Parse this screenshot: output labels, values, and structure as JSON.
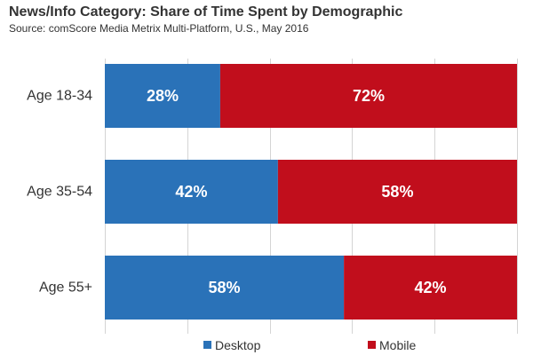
{
  "chart_data": {
    "type": "bar",
    "orientation": "horizontal",
    "stacked": true,
    "percent_stacked": true,
    "title": "News/Info Category: Share of Time Spent by Demographic",
    "subtitle": "Source: comScore Media Metrix Multi-Platform, U.S., May 2016",
    "categories": [
      "Age 18-34",
      "Age 35-54",
      "Age 55+"
    ],
    "series": [
      {
        "name": "Desktop",
        "values": [
          28,
          42,
          58
        ],
        "labels": [
          "28%",
          "42%",
          "58%"
        ]
      },
      {
        "name": "Mobile",
        "values": [
          72,
          58,
          42
        ],
        "labels": [
          "72%",
          "58%",
          "42%"
        ]
      }
    ],
    "xlim": [
      0,
      100
    ],
    "legend": "bottom",
    "grid": true
  },
  "colors": {
    "Desktop": "#2a72b8",
    "Mobile": "#c10e1c"
  }
}
